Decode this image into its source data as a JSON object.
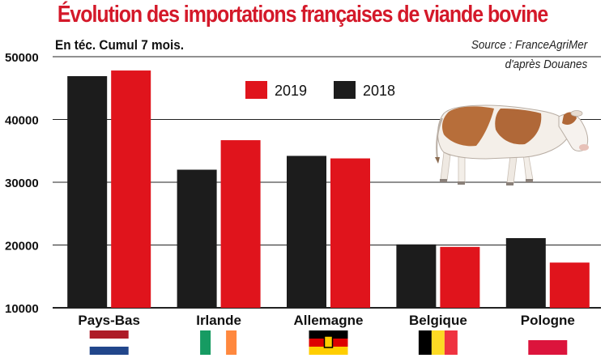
{
  "title": "Évolution des importations françaises de viande bovine",
  "subtitle": "En téc. Cumul 7 mois.",
  "source": {
    "line1": "Source : FranceAgriMer",
    "line2": "d'après Douanes"
  },
  "colors": {
    "title": "#d4192a",
    "series_2019": "#e0141c",
    "series_2018": "#1c1c1c",
    "grid": "#222222"
  },
  "chart_data": {
    "type": "bar",
    "categories": [
      "Pays-Bas",
      "Irlande",
      "Allemagne",
      "Belgique",
      "Pologne"
    ],
    "series": [
      {
        "name": "2018",
        "color": "#1c1c1c",
        "values": [
          46900,
          32000,
          34200,
          20100,
          21100
        ]
      },
      {
        "name": "2019",
        "color": "#e0141c",
        "values": [
          47800,
          36700,
          33800,
          19700,
          17200
        ]
      }
    ],
    "ylim": [
      10000,
      50000
    ],
    "yticks": [
      10000,
      20000,
      30000,
      40000,
      50000
    ],
    "grid": true,
    "legend_position": "top-center",
    "xlabel": "",
    "ylabel": ""
  },
  "flags": [
    {
      "country": "Pays-Bas",
      "icon": "netherlands-flag-icon",
      "colors": [
        "#ae1c28",
        "#ffffff",
        "#21468b"
      ],
      "orientation": "horizontal"
    },
    {
      "country": "Irlande",
      "icon": "ireland-flag-icon",
      "colors": [
        "#169b62",
        "#ffffff",
        "#ff883e"
      ],
      "orientation": "vertical"
    },
    {
      "country": "Allemagne",
      "icon": "germany-flag-icon",
      "colors": [
        "#000000",
        "#dd0000",
        "#ffce00"
      ],
      "orientation": "horizontal"
    },
    {
      "country": "Belgique",
      "icon": "belgium-flag-icon",
      "colors": [
        "#000000",
        "#fdda24",
        "#ef3340"
      ],
      "orientation": "vertical"
    },
    {
      "country": "Pologne",
      "icon": "poland-flag-icon",
      "colors": [
        "#ffffff",
        "#dc143c"
      ],
      "orientation": "horizontal"
    }
  ],
  "illustration": {
    "icon": "cow-icon"
  }
}
